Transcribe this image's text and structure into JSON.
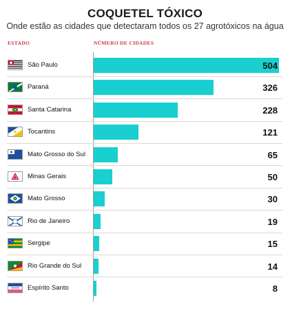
{
  "header": {
    "title": "COQUETEL TÓXICO",
    "subtitle": "Onde estão as cidades que detectaram todos os 27 agrotóxicos na água",
    "col_state": "ESTADO",
    "col_count": "NÚMERO DE CIDADES"
  },
  "colors": {
    "bar": "#19cfcf",
    "header_label": "#d0384b"
  },
  "chart_data": {
    "type": "bar",
    "orientation": "horizontal",
    "title": "COQUETEL TÓXICO",
    "subtitle": "Onde estão as cidades que detectaram todos os 27 agrotóxicos na água",
    "xlabel": "NÚMERO DE CIDADES",
    "ylabel": "ESTADO",
    "categories": [
      "São Paulo",
      "Paraná",
      "Santa Catarina",
      "Tocantins",
      "Mato Grosso do Sul",
      "Minas Gerais",
      "Mato Grosso",
      "Rio de Janeiro",
      "Sergipe",
      "Rio Grande do Sul",
      "Espírito Santo"
    ],
    "values": [
      504,
      326,
      228,
      121,
      65,
      50,
      30,
      19,
      15,
      14,
      8
    ],
    "xlim": [
      0,
      504
    ],
    "grid": false,
    "legend": "none"
  },
  "flags": [
    "sao-paulo-flag-icon",
    "parana-flag-icon",
    "santa-catarina-flag-icon",
    "tocantins-flag-icon",
    "mato-grosso-do-sul-flag-icon",
    "minas-gerais-flag-icon",
    "mato-grosso-flag-icon",
    "rio-de-janeiro-flag-icon",
    "sergipe-flag-icon",
    "rio-grande-do-sul-flag-icon",
    "espirito-santo-flag-icon"
  ]
}
